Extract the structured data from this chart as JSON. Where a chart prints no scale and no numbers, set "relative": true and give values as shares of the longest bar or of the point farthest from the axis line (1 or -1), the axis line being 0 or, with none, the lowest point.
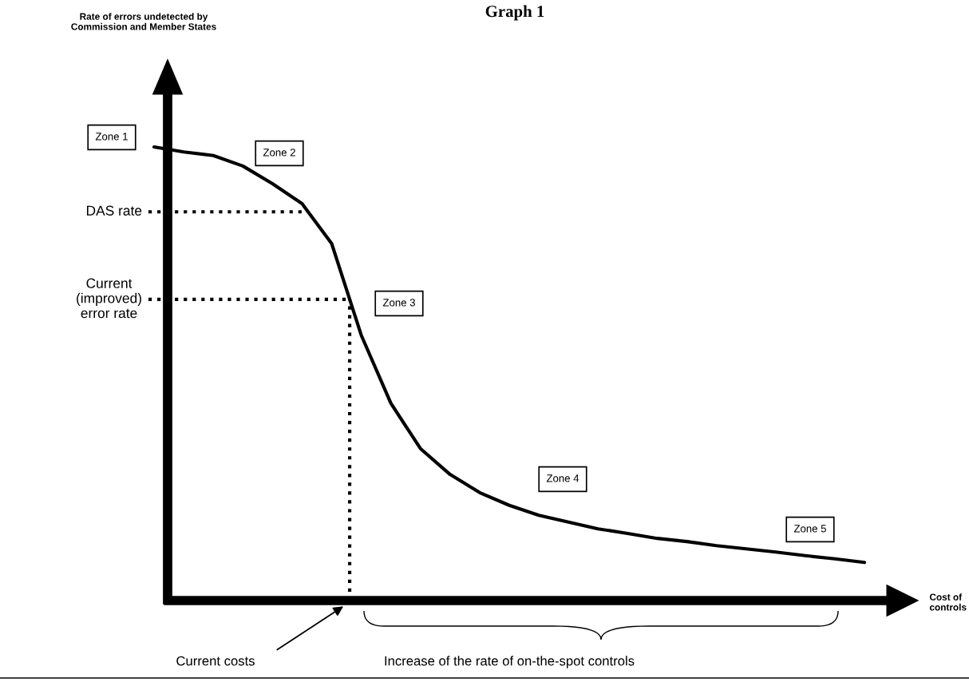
{
  "chart_data": {
    "type": "line",
    "title": "Graph 1",
    "xlabel": "Cost of\ncontrols",
    "relative": true,
    "categories": [
      null,
      null,
      null,
      null,
      null,
      null,
      null,
      null,
      null,
      null,
      null,
      null,
      null,
      null,
      null,
      null,
      null,
      null,
      null,
      null,
      null,
      null,
      null,
      null,
      null
    ],
    "series": [
      {
        "color": "#000000",
        "values": [
          1.0,
          0.989,
          0.981,
          0.958,
          0.919,
          0.875,
          0.787,
          0.585,
          0.435,
          0.335,
          0.278,
          0.238,
          0.21,
          0.188,
          0.173,
          0.158,
          0.148,
          0.137,
          0.13,
          0.121,
          0.114,
          0.107,
          0.099,
          0.092,
          0.084
        ]
      }
    ],
    "ref_lines": [
      {
        "axis": "y",
        "value": 0.857,
        "label": "DAS rate",
        "color": "#000000",
        "line_style": "dotted"
      },
      {
        "axis": "y",
        "value": 0.664,
        "label": "Current\n(improved)\nerror rate",
        "color": "#000000",
        "line_style": "dotted"
      }
    ],
    "annotations": [
      "Zone 1",
      "Zone 2",
      "Zone 3",
      "Zone 4",
      "Zone 5",
      "Current costs",
      "Increase of the rate of on-the-spot controls",
      "Rate of errors undetected by\nCommission and Member States"
    ],
    "grid": false,
    "legend": false,
    "line_style": "solid",
    "marker": "none"
  }
}
